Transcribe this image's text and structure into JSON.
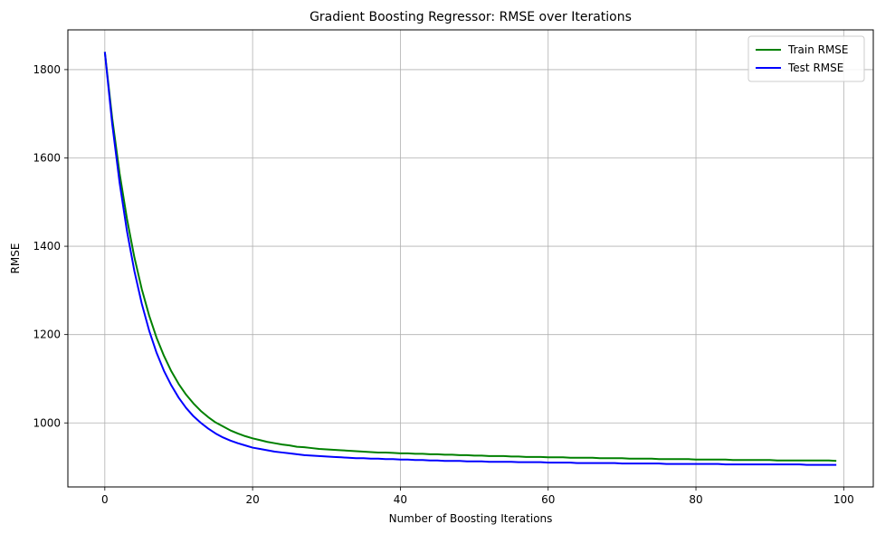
{
  "chart_data": {
    "type": "line",
    "title": "Gradient Boosting Regressor: RMSE over Iterations",
    "xlabel": "Number of Boosting Iterations",
    "ylabel": "RMSE",
    "xlim": [
      -5,
      104
    ],
    "ylim": [
      855,
      1890
    ],
    "xticks": [
      0,
      20,
      40,
      60,
      80,
      100
    ],
    "yticks": [
      1000,
      1200,
      1400,
      1600,
      1800
    ],
    "grid": true,
    "legend_position": "top-right",
    "x_start": 0,
    "series": [
      {
        "name": "Train RMSE",
        "color": "#008000",
        "values": [
          1840,
          1685,
          1555,
          1442,
          1345,
          1264,
          1195,
          1139,
          1092,
          1054,
          1022,
          997,
          977,
          961,
          948,
          938,
          930,
          924,
          919,
          915,
          977,
          971,
          966,
          962,
          958,
          955,
          953,
          951,
          949,
          947,
          946,
          944,
          943,
          941,
          940,
          939,
          938,
          937,
          936,
          935,
          934,
          933,
          932,
          932,
          931,
          930,
          929,
          929,
          928,
          927,
          927,
          926,
          926,
          925,
          925,
          924,
          924,
          923,
          923,
          922,
          922,
          921,
          921,
          921,
          920,
          920,
          920,
          919,
          919,
          919,
          918,
          918,
          918,
          918,
          917,
          917,
          917,
          917,
          916,
          916,
          916,
          916,
          915,
          915,
          915,
          915,
          915,
          914,
          914,
          914,
          914,
          914,
          913,
          913,
          913,
          913,
          913,
          912,
          912,
          912
        ],
        "values_note": ""
      },
      {
        "name": "Test RMSE",
        "color": "#0000ff",
        "values": []
      }
    ]
  }
}
